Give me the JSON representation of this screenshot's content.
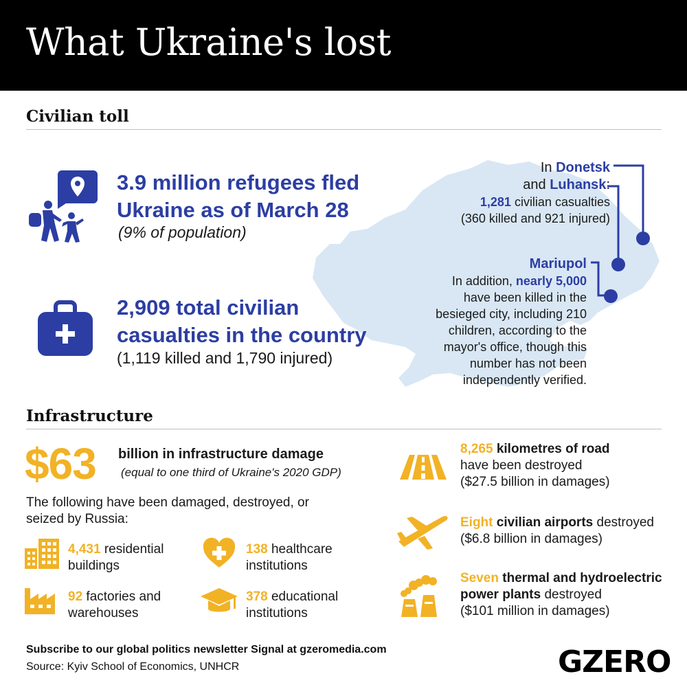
{
  "header": {
    "title": "What Ukraine's lost"
  },
  "civilian": {
    "section_title": "Civilian toll",
    "refugees_line1": "3.9 million refugees fled",
    "refugees_line2": "Ukraine as of March 28",
    "refugees_note": "(9% of population)",
    "casualties_line1": "2,909 total civilian",
    "casualties_line2": "casualties in the country",
    "casualties_note": "(1,119 killed and 1,790 injured)",
    "donetsk": {
      "prefix": "In ",
      "donetsk": "Donetsk",
      "and": "and ",
      "luhansk": "Luhansk",
      "colon": ":",
      "count": "1,281",
      "count_suffix": " civilian casualties",
      "detail": "(360 killed and 921 injured)"
    },
    "mariupol": {
      "title": "Mariupol",
      "line1_prefix": "In addition, ",
      "line1_em": "nearly 5,000",
      "line2": "have been killed in the",
      "line3": "besieged city, including 210",
      "line4": "children, according to the",
      "line5": "mayor's office, though this",
      "line6": "number has not been",
      "line7": "independently verified."
    }
  },
  "infrastructure": {
    "section_title": "Infrastructure",
    "damage_amount": "$63",
    "damage_label": "billion in infrastructure damage",
    "damage_note": "(equal to one third of Ukraine's 2020 GDP)",
    "intro_line1": "The following have been damaged, destroyed, or",
    "intro_line2": "seized by Russia:",
    "residential": {
      "num": "4,431",
      "line1": " residential",
      "line2": "buildings"
    },
    "healthcare": {
      "num": "138",
      "line1": " healthcare",
      "line2": "institutions"
    },
    "factories": {
      "num": "92",
      "line1": " factories and",
      "line2": "warehouses"
    },
    "educational": {
      "num": "378",
      "line1": " educational",
      "line2": "institutions"
    },
    "roads": {
      "num": "8,265",
      "label": " kilometres of road",
      "line2": "have been destroyed",
      "line3": "($27.5 billion in damages)"
    },
    "airports": {
      "num": "Eight",
      "label": " civilian airports",
      "rest": " destroyed",
      "line2": "($6.8 billion in damages)"
    },
    "power": {
      "num": "Seven",
      "label": " thermal and hydroelectric",
      "line2_bold": "power plants",
      "line2_rest": " destroyed",
      "line3": "($101 million in damages)"
    }
  },
  "footer": {
    "subscribe": "Subscribe to our global politics newsletter Signal at gzeromedia.com",
    "source": "Source: Kyiv School of Economics, UNHCR",
    "logo": "GZERO"
  },
  "colors": {
    "blue": "#2c3ea3",
    "gold": "#f2b225",
    "map": "#d9e7f4",
    "header": "#000000"
  },
  "icons": [
    "location-pin-icon",
    "refugees-icon",
    "medical-kit-icon",
    "building-icon",
    "heart-plus-icon",
    "factory-icon",
    "graduation-cap-icon",
    "road-icon",
    "airplane-icon",
    "power-plant-icon"
  ]
}
